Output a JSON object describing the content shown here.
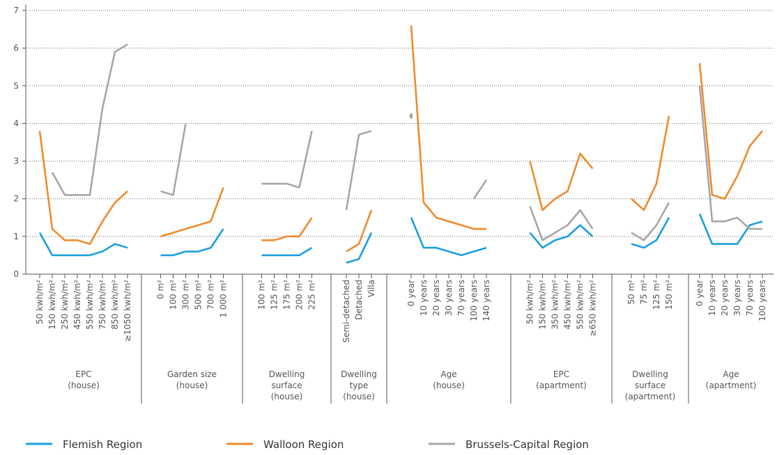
{
  "chart_data": {
    "type": "line",
    "ylim": [
      0,
      7
    ],
    "yticks": [
      0,
      1,
      2,
      3,
      4,
      5,
      6,
      7
    ],
    "grid": true,
    "groups": [
      {
        "label": [
          "EPC",
          "(house)"
        ],
        "categories": [
          "50 kwh/m²",
          "150 kwh/m²",
          "250 kwh/m²",
          "450 kwh/m²",
          "550 kwh/m²",
          "750 kwh/m²",
          "850 kwh/m²",
          "≥1050 kwh/m²"
        ]
      },
      {
        "label": [
          "Garden size",
          "(house)"
        ],
        "categories": [
          "0 m²",
          "100 m²",
          "300 m²",
          "500 m²",
          "700 m²",
          "1 000 m²"
        ]
      },
      {
        "label": [
          "Dwelling",
          "surface",
          "(house)"
        ],
        "categories": [
          "100 m²",
          "125 m²",
          "175 m²",
          "200 m²",
          "225 m²"
        ]
      },
      {
        "label": [
          "Dwelling",
          "type",
          "(house)"
        ],
        "categories": [
          "Semi-detached",
          "Detached",
          "Villa"
        ]
      },
      {
        "label": [
          "Age",
          "(house)"
        ],
        "categories": [
          "0 year",
          "10 years",
          "20 years",
          "30 years",
          "70 years",
          "100 years",
          "140 years"
        ]
      },
      {
        "label": [
          "EPC",
          "(apartment)"
        ],
        "categories": [
          "50 kwh/m²",
          "150 kwh/m²",
          "350 kwh/m²",
          "450 kwh/m²",
          "550 kwh/m²",
          "≥650 kwh/m²"
        ]
      },
      {
        "label": [
          "Dwelling",
          "surface",
          "(apartment)"
        ],
        "categories": [
          "50 m²",
          "75 m²",
          "125 m²",
          "150 m²"
        ]
      },
      {
        "label": [
          "Age",
          "(apartment)"
        ],
        "categories": [
          "0 year",
          "10 years",
          "20 years",
          "30 years",
          "70 years",
          "100 years"
        ]
      }
    ],
    "series": [
      {
        "name": "Flemish Region",
        "color": "#1a9ee0",
        "values": [
          [
            1.1,
            0.5,
            0.5,
            0.5,
            0.5,
            0.6,
            0.8,
            0.7
          ],
          [
            0.5,
            0.5,
            0.6,
            0.6,
            0.7,
            1.2
          ],
          [
            0.5,
            0.5,
            0.5,
            0.5,
            0.7
          ],
          [
            0.3,
            0.4,
            1.1
          ],
          [
            1.5,
            0.7,
            0.7,
            0.6,
            0.5,
            0.6,
            0.7
          ],
          [
            1.1,
            0.7,
            0.9,
            1.0,
            1.3,
            1.0
          ],
          [
            0.8,
            0.7,
            0.9,
            1.5
          ],
          [
            1.6,
            0.8,
            0.8,
            0.8,
            1.3,
            1.4
          ]
        ]
      },
      {
        "name": "Walloon Region",
        "color": "#f08a2c",
        "values": [
          [
            3.8,
            1.2,
            0.9,
            0.9,
            0.8,
            1.4,
            1.9,
            2.2
          ],
          [
            1.0,
            1.1,
            1.2,
            1.3,
            1.4,
            2.3
          ],
          [
            0.9,
            0.9,
            1.0,
            1.0,
            1.5
          ],
          [
            0.6,
            0.8,
            1.7
          ],
          [
            6.6,
            1.9,
            1.5,
            1.4,
            1.3,
            1.2,
            1.2
          ],
          [
            3.0,
            1.7,
            2.0,
            2.2,
            3.2,
            2.8
          ],
          [
            2.0,
            1.7,
            2.4,
            4.2
          ],
          [
            5.6,
            2.1,
            2.0,
            2.6,
            3.4,
            3.8
          ]
        ]
      },
      {
        "name": "Brussels-Capital Region",
        "color": "#a6a6a6",
        "values": [
          [
            null,
            2.7,
            2.1,
            2.1,
            2.1,
            4.4,
            5.9,
            6.1
          ],
          [
            2.2,
            2.1,
            4.0,
            null,
            null,
            null
          ],
          [
            2.4,
            2.4,
            2.4,
            2.3,
            3.8
          ],
          [
            1.7,
            3.7,
            3.8
          ],
          [
            4.2,
            null,
            null,
            null,
            null,
            2.0,
            2.5
          ],
          [
            1.8,
            0.9,
            1.1,
            1.3,
            1.7,
            1.2
          ],
          [
            1.1,
            0.9,
            1.3,
            1.9
          ],
          [
            5.0,
            1.4,
            1.4,
            1.5,
            1.2,
            1.2
          ]
        ]
      }
    ]
  }
}
